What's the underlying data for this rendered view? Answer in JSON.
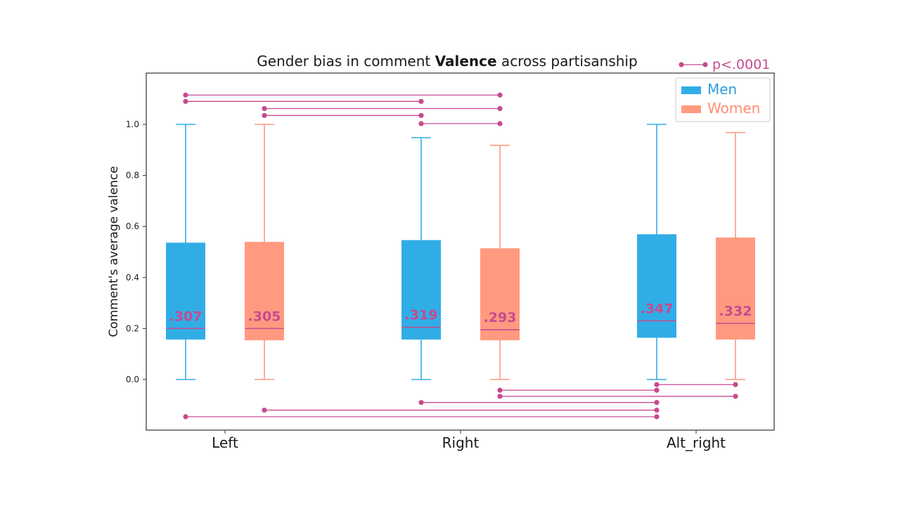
{
  "chart_data": {
    "type": "box",
    "title_prefix": "Gender bias in comment ",
    "title_bold": "Valence",
    "title_suffix": " across partisanship",
    "ylabel": "Comment's average valence",
    "xlabel": "",
    "categories": [
      "Left",
      "Right",
      "Alt_right"
    ],
    "ylim": [
      -0.2,
      1.2
    ],
    "yticks": [
      "0.0",
      "0.2",
      "0.4",
      "0.6",
      "0.8",
      "1.0"
    ],
    "grid": false,
    "legend_position": "top-right",
    "significance_label": "p<.0001",
    "series": [
      {
        "name": "Men",
        "color": "#31ade6",
        "stats": [
          {
            "min": 0.0,
            "q1": 0.158,
            "median": 0.2,
            "q3": 0.535,
            "max": 1.0,
            "label": ".307"
          },
          {
            "min": 0.0,
            "q1": 0.158,
            "median": 0.205,
            "q3": 0.545,
            "max": 0.948,
            "label": ".319"
          },
          {
            "min": 0.0,
            "q1": 0.165,
            "median": 0.23,
            "q3": 0.568,
            "max": 1.0,
            "label": ".347"
          }
        ]
      },
      {
        "name": "Women",
        "color": "#ff9a80",
        "stats": [
          {
            "min": 0.0,
            "q1": 0.155,
            "median": 0.2,
            "q3": 0.538,
            "max": 1.0,
            "label": ".305"
          },
          {
            "min": 0.0,
            "q1": 0.155,
            "median": 0.195,
            "q3": 0.513,
            "max": 0.918,
            "label": ".293"
          },
          {
            "min": 0.0,
            "q1": 0.158,
            "median": 0.22,
            "q3": 0.555,
            "max": 0.968,
            "label": ".332"
          }
        ]
      }
    ],
    "significance_brackets": [
      {
        "from": [
          "Men",
          "Left"
        ],
        "to": [
          "Women",
          "Right"
        ],
        "y": 1.115
      },
      {
        "from": [
          "Men",
          "Left"
        ],
        "to": [
          "Men",
          "Right"
        ],
        "y": 1.09
      },
      {
        "from": [
          "Women",
          "Left"
        ],
        "to": [
          "Women",
          "Right"
        ],
        "y": 1.062
      },
      {
        "from": [
          "Women",
          "Left"
        ],
        "to": [
          "Men",
          "Right"
        ],
        "y": 1.035
      },
      {
        "from": [
          "Men",
          "Right"
        ],
        "to": [
          "Women",
          "Right"
        ],
        "y": 1.003
      },
      {
        "from": [
          "Men",
          "Alt_right"
        ],
        "to": [
          "Women",
          "Alt_right"
        ],
        "y": -0.02
      },
      {
        "from": [
          "Women",
          "Right"
        ],
        "to": [
          "Men",
          "Alt_right"
        ],
        "y": -0.042
      },
      {
        "from": [
          "Women",
          "Right"
        ],
        "to": [
          "Women",
          "Alt_right"
        ],
        "y": -0.066
      },
      {
        "from": [
          "Men",
          "Right"
        ],
        "to": [
          "Men",
          "Alt_right"
        ],
        "y": -0.09
      },
      {
        "from": [
          "Women",
          "Left"
        ],
        "to": [
          "Men",
          "Alt_right"
        ],
        "y": -0.12
      },
      {
        "from": [
          "Men",
          "Left"
        ],
        "to": [
          "Men",
          "Alt_right"
        ],
        "y": -0.146
      }
    ],
    "colors": {
      "significance": "#c74a8f",
      "median_label": "#c74a8f",
      "men_legend_text": "#2a9fde",
      "women_legend_text": "#ff8f70"
    }
  }
}
